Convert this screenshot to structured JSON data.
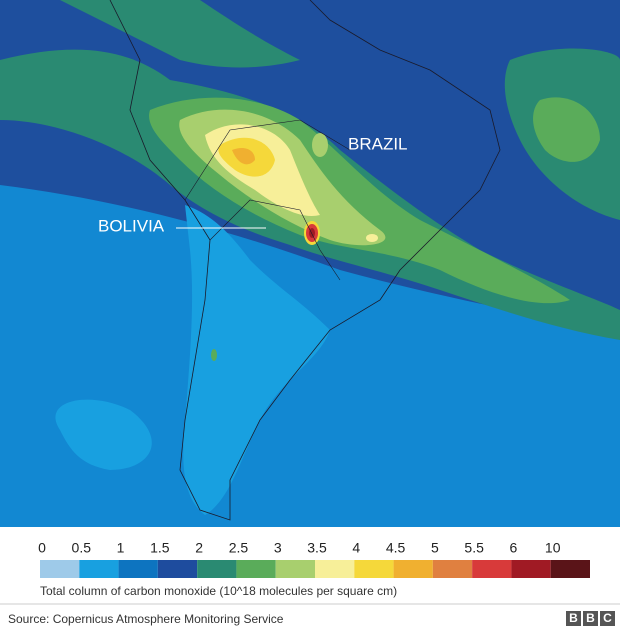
{
  "map": {
    "labels": [
      "BRAZIL",
      "BOLIVIA"
    ]
  },
  "legend": {
    "ticks": [
      0,
      0.5,
      1,
      1.5,
      2,
      2.5,
      3,
      3.5,
      4,
      4.5,
      5,
      5.5,
      6,
      10
    ],
    "colors": [
      "#9ecae9",
      "#18a0e0",
      "#0d74c0",
      "#1e4c9e",
      "#2a8a72",
      "#5aac5a",
      "#a8cf6e",
      "#f7ef99",
      "#f5d83a",
      "#f0b030",
      "#e08040",
      "#d83a3a",
      "#a01a24",
      "#5a1418"
    ],
    "caption": "Total column of carbon monoxide (10^18 molecules per square cm)"
  },
  "source": "Source: Copernicus Atmosphere Monitoring Service",
  "logo": [
    "B",
    "B",
    "C"
  ]
}
